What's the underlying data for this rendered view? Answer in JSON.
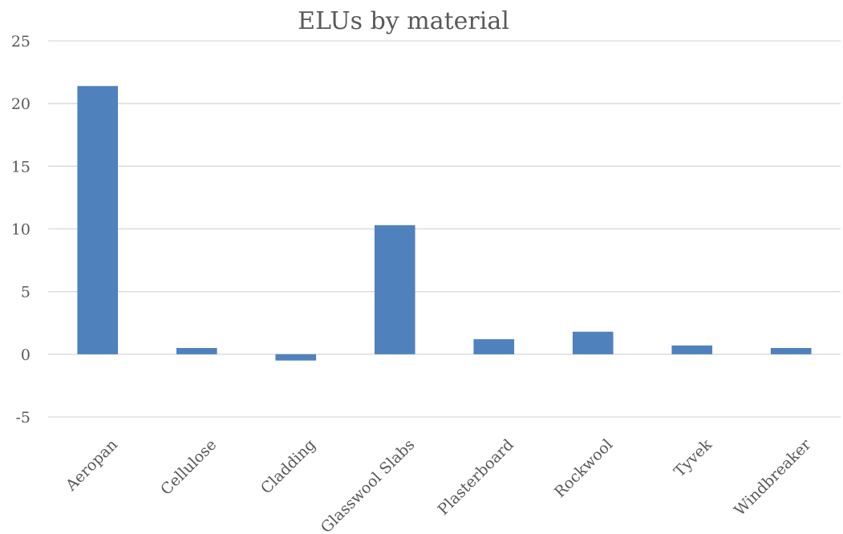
{
  "chart_data": {
    "type": "bar",
    "title": "ELUs by material",
    "xlabel": "",
    "ylabel": "",
    "categories": [
      "Aeropan",
      "Cellulose",
      "Cladding",
      "Glasswool Slabs",
      "Plasterboard",
      "Rockwool",
      "Tyvek",
      "Windbreaker"
    ],
    "values": [
      21.4,
      0.5,
      -0.5,
      10.3,
      1.2,
      1.8,
      0.7,
      0.5
    ],
    "ylim": [
      -5,
      25
    ],
    "yticks": [
      -5,
      0,
      5,
      10,
      15,
      20,
      25
    ],
    "grid": true,
    "legend": "none",
    "bar_color": "#4f81bd"
  }
}
